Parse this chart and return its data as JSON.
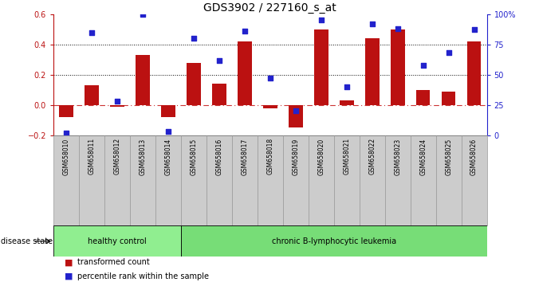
{
  "title": "GDS3902 / 227160_s_at",
  "samples": [
    "GSM658010",
    "GSM658011",
    "GSM658012",
    "GSM658013",
    "GSM658014",
    "GSM658015",
    "GSM658016",
    "GSM658017",
    "GSM658018",
    "GSM658019",
    "GSM658020",
    "GSM658021",
    "GSM658022",
    "GSM658023",
    "GSM658024",
    "GSM658025",
    "GSM658026"
  ],
  "bar_values": [
    -0.08,
    0.13,
    -0.01,
    0.33,
    -0.08,
    0.28,
    0.14,
    0.42,
    -0.02,
    -0.15,
    0.5,
    0.03,
    0.44,
    0.5,
    0.1,
    0.09,
    0.42
  ],
  "dot_values": [
    2,
    85,
    28,
    100,
    3,
    80,
    62,
    86,
    47,
    20,
    95,
    40,
    92,
    88,
    58,
    68,
    87
  ],
  "bar_color": "#bb1111",
  "dot_color": "#2222cc",
  "left_ylim": [
    -0.2,
    0.6
  ],
  "right_ylim": [
    0,
    100
  ],
  "left_yticks": [
    -0.2,
    0.0,
    0.2,
    0.4,
    0.6
  ],
  "right_yticks": [
    0,
    25,
    50,
    75,
    100
  ],
  "right_yticklabels": [
    "0",
    "25",
    "50",
    "75",
    "100%"
  ],
  "hline_values": [
    0.2,
    0.4
  ],
  "zero_line": 0.0,
  "healthy_count": 5,
  "healthy_label": "healthy control",
  "leukemia_label": "chronic B-lymphocytic leukemia",
  "disease_state_label": "disease state",
  "legend_bar_label": "transformed count",
  "legend_dot_label": "percentile rank within the sample",
  "healthy_color": "#90ee90",
  "leukemia_color": "#77dd77",
  "label_bg_color": "#cccccc",
  "label_border_color": "#999999",
  "zero_line_color": "#cc3333",
  "background_color": "#ffffff",
  "bar_width": 0.55
}
